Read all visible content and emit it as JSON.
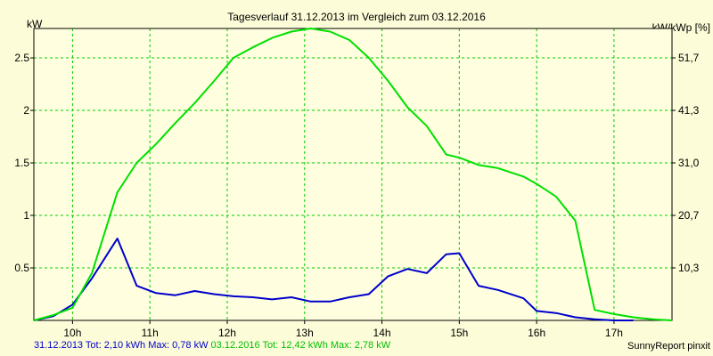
{
  "chart_data": {
    "type": "line",
    "title": "Tagesverlauf 31.12.2013 im Vergleich zum 03.12.2016",
    "ylabel_left": "kW",
    "ylabel_right": "kW/kWp [%]",
    "ylim": [
      0,
      2.78
    ],
    "y_ticks": [
      0.5,
      1,
      1.5,
      2,
      2.5
    ],
    "y_tick_labels": [
      "0.5",
      "1",
      "1.5",
      "2",
      "2.5"
    ],
    "y2_ticks": [
      0.5,
      1,
      1.5,
      2,
      2.5
    ],
    "y2_tick_labels": [
      "10,3",
      "20,7",
      "31,0",
      "41,3",
      "51,7"
    ],
    "x_range": [
      9.5,
      17.75
    ],
    "x_ticks": [
      10,
      11,
      12,
      13,
      14,
      15,
      16,
      17
    ],
    "x_tick_labels": [
      "10h",
      "11h",
      "12h",
      "13h",
      "14h",
      "15h",
      "16h",
      "17h"
    ],
    "grid": true,
    "series": [
      {
        "name": "31.12.2013",
        "color": "#0000cc",
        "x": [
          9.5,
          9.75,
          10.0,
          10.25,
          10.58,
          10.83,
          11.08,
          11.33,
          11.58,
          11.83,
          12.08,
          12.33,
          12.58,
          12.83,
          13.08,
          13.33,
          13.58,
          13.83,
          14.08,
          14.33,
          14.58,
          14.83,
          15.0,
          15.25,
          15.5,
          15.83,
          16.0,
          16.25,
          16.5,
          16.75,
          17.0,
          17.25
        ],
        "y": [
          0.0,
          0.04,
          0.15,
          0.4,
          0.78,
          0.33,
          0.26,
          0.24,
          0.28,
          0.25,
          0.23,
          0.22,
          0.2,
          0.22,
          0.18,
          0.18,
          0.22,
          0.25,
          0.42,
          0.49,
          0.45,
          0.63,
          0.64,
          0.33,
          0.29,
          0.21,
          0.09,
          0.07,
          0.03,
          0.01,
          0.0,
          0.0
        ]
      },
      {
        "name": "03.12.2016",
        "color": "#00e000",
        "x": [
          9.5,
          9.75,
          10.0,
          10.25,
          10.58,
          10.83,
          11.08,
          11.33,
          11.58,
          11.83,
          12.08,
          12.33,
          12.58,
          12.83,
          13.08,
          13.33,
          13.58,
          13.83,
          14.08,
          14.33,
          14.58,
          14.83,
          15.0,
          15.25,
          15.5,
          15.83,
          16.0,
          16.25,
          16.5,
          16.75,
          17.0,
          17.25,
          17.5,
          17.75
        ],
        "y": [
          0.0,
          0.05,
          0.12,
          0.45,
          1.22,
          1.5,
          1.68,
          1.88,
          2.07,
          2.28,
          2.5,
          2.6,
          2.69,
          2.75,
          2.78,
          2.75,
          2.67,
          2.5,
          2.28,
          2.03,
          1.85,
          1.58,
          1.55,
          1.48,
          1.45,
          1.37,
          1.3,
          1.18,
          0.95,
          0.1,
          0.06,
          0.03,
          0.01,
          0.0
        ]
      }
    ]
  },
  "footer": {
    "series1_text": "31.12.2013 Tot: 2,10 kWh Max: 0,78 kW",
    "series2_text": "03.12.2016 Tot: 12,42 kWh Max: 2,78 kW",
    "credit": "SunnyReport pinxit"
  }
}
